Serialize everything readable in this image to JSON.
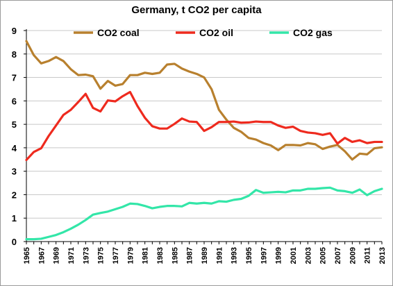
{
  "chart_data": {
    "type": "line",
    "title": "Germany, t CO2 per capita",
    "xlabel": "",
    "ylabel": "",
    "ylim": [
      0,
      9
    ],
    "yticks": [
      "0",
      "1",
      "2",
      "3",
      "4",
      "5",
      "6",
      "7",
      "8",
      "9"
    ],
    "x": [
      1965,
      1966,
      1967,
      1968,
      1969,
      1970,
      1971,
      1972,
      1973,
      1974,
      1975,
      1976,
      1977,
      1978,
      1979,
      1980,
      1981,
      1982,
      1983,
      1984,
      1985,
      1986,
      1987,
      1988,
      1989,
      1990,
      1991,
      1992,
      1993,
      1994,
      1995,
      1996,
      1997,
      1998,
      1999,
      2000,
      2001,
      2002,
      2003,
      2004,
      2005,
      2006,
      2007,
      2008,
      2009,
      2010,
      2011,
      2012,
      2013
    ],
    "xtick_labels": [
      "1965",
      "1967",
      "1969",
      "1971",
      "1973",
      "1975",
      "1977",
      "1979",
      "1981",
      "1983",
      "1985",
      "1987",
      "1989",
      "1991",
      "1993",
      "1995",
      "1997",
      "1999",
      "2001",
      "2003",
      "2005",
      "2007",
      "2009",
      "2011",
      "2013"
    ],
    "grid": "horizontal",
    "legend": "top",
    "series": [
      {
        "name": "CO2 coal",
        "color": "#B8802E",
        "values": [
          8.55,
          7.95,
          7.6,
          7.7,
          7.87,
          7.7,
          7.35,
          7.1,
          7.12,
          7.05,
          6.52,
          6.85,
          6.65,
          6.72,
          7.1,
          7.1,
          7.2,
          7.15,
          7.2,
          7.55,
          7.58,
          7.38,
          7.25,
          7.15,
          7.0,
          6.5,
          5.62,
          5.2,
          4.85,
          4.68,
          4.42,
          4.35,
          4.2,
          4.1,
          3.9,
          4.12,
          4.12,
          4.1,
          4.2,
          4.15,
          3.95,
          4.05,
          4.12,
          3.85,
          3.5,
          3.75,
          3.72,
          3.98,
          4.02
        ]
      },
      {
        "name": "CO2 oil",
        "color": "#EE2A1E",
        "values": [
          3.48,
          3.82,
          3.98,
          4.5,
          4.95,
          5.4,
          5.62,
          5.95,
          6.3,
          5.7,
          5.55,
          6.02,
          5.98,
          6.2,
          6.38,
          5.78,
          5.28,
          4.92,
          4.82,
          4.82,
          5.02,
          5.25,
          5.12,
          5.1,
          4.72,
          4.88,
          5.1,
          5.1,
          5.12,
          5.07,
          5.08,
          5.12,
          5.1,
          5.1,
          4.95,
          4.85,
          4.9,
          4.72,
          4.65,
          4.62,
          4.55,
          4.62,
          4.18,
          4.42,
          4.25,
          4.32,
          4.2,
          4.25,
          4.25
        ]
      },
      {
        "name": "CO2 gas",
        "color": "#33E6A8",
        "values": [
          0.1,
          0.1,
          0.12,
          0.2,
          0.28,
          0.4,
          0.55,
          0.72,
          0.92,
          1.15,
          1.22,
          1.28,
          1.38,
          1.48,
          1.62,
          1.6,
          1.52,
          1.42,
          1.48,
          1.52,
          1.52,
          1.5,
          1.65,
          1.62,
          1.65,
          1.62,
          1.72,
          1.7,
          1.78,
          1.82,
          1.95,
          2.2,
          2.08,
          2.1,
          2.12,
          2.1,
          2.18,
          2.18,
          2.25,
          2.25,
          2.28,
          2.3,
          2.18,
          2.15,
          2.08,
          2.22,
          1.98,
          2.15,
          2.25
        ]
      }
    ]
  }
}
